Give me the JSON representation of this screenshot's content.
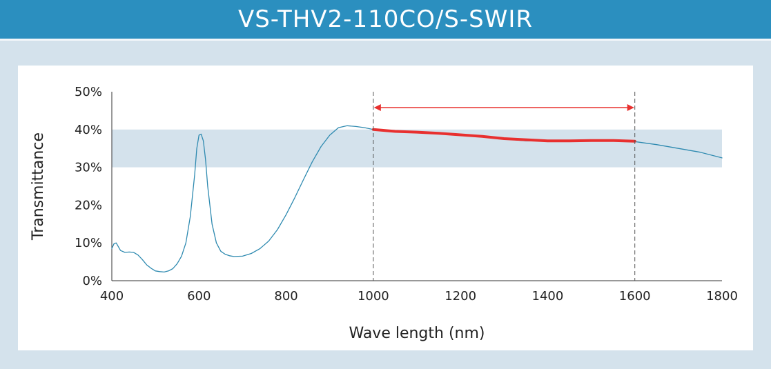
{
  "header": {
    "title": "VS-THV2-110CO/S-SWIR"
  },
  "chart_data": {
    "type": "line",
    "title": "VS-THV2-110CO/S-SWIR",
    "xlabel": "Wave length (nm)",
    "ylabel": "Transmittance",
    "xlim": [
      400,
      1800
    ],
    "ylim": [
      0,
      50
    ],
    "x_ticks": [
      "400",
      "600",
      "800",
      "1000",
      "1200",
      "1400",
      "1600",
      "1800"
    ],
    "y_ticks": [
      "0%",
      "10%",
      "20%",
      "30%",
      "40%",
      "50%"
    ],
    "grid": false,
    "band": {
      "y_from": 30,
      "y_to": 40,
      "color": "#d4e2ec"
    },
    "range_markers": {
      "x_from": 1000,
      "x_to": 1600,
      "arrow_color": "#e8302f"
    },
    "series": [
      {
        "color": "#2e8ab0",
        "x": [
          400,
          405,
          410,
          415,
          420,
          430,
          440,
          450,
          460,
          470,
          480,
          490,
          500,
          510,
          520,
          530,
          540,
          550,
          560,
          570,
          580,
          590,
          595,
          600,
          605,
          610,
          615,
          620,
          630,
          640,
          650,
          660,
          670,
          680,
          700,
          720,
          740,
          760,
          780,
          800,
          820,
          840,
          860,
          880,
          900,
          920,
          940,
          960,
          980,
          1000,
          1050,
          1100,
          1150,
          1200,
          1250,
          1300,
          1350,
          1400,
          1450,
          1500,
          1550,
          1600,
          1650,
          1700,
          1750,
          1800
        ],
        "y": [
          8.5,
          9.8,
          10,
          9,
          8,
          7.5,
          7.6,
          7.5,
          6.8,
          5.6,
          4.2,
          3.3,
          2.6,
          2.4,
          2.3,
          2.6,
          3.2,
          4.5,
          6.5,
          10,
          17,
          28,
          35,
          38.5,
          38.8,
          37,
          32,
          25,
          15,
          10,
          7.8,
          7,
          6.6,
          6.4,
          6.5,
          7.2,
          8.5,
          10.5,
          13.5,
          17.5,
          22,
          26.8,
          31.5,
          35.5,
          38.5,
          40.5,
          41,
          40.8,
          40.5,
          40,
          39.5,
          39.2,
          38.9,
          38.5,
          38,
          37.5,
          37,
          37,
          37,
          37,
          37,
          36.8,
          36,
          35,
          34,
          32.5
        ]
      },
      {
        "color": "#e8302f",
        "x": [
          1000,
          1050,
          1100,
          1150,
          1200,
          1250,
          1300,
          1350,
          1400,
          1450,
          1500,
          1550,
          1600
        ],
        "y": [
          40,
          39.5,
          39.3,
          39,
          38.6,
          38.2,
          37.6,
          37.3,
          37,
          37,
          37.1,
          37.1,
          36.9
        ]
      }
    ]
  }
}
